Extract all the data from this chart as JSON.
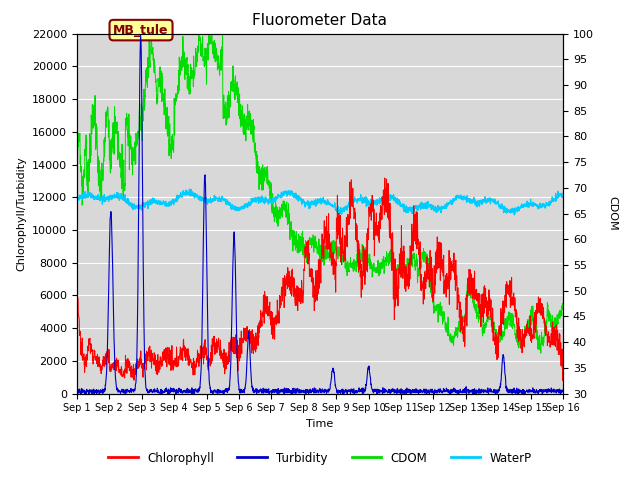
{
  "title": "Fluorometer Data",
  "xlabel": "Time",
  "ylabel_left": "Chlorophyll/Turbidity",
  "ylabel_right": "CDOM",
  "annotation_text": "MB_tule",
  "ylim_left": [
    0,
    22000
  ],
  "ylim_right": [
    30,
    100
  ],
  "yticks_left": [
    0,
    2000,
    4000,
    6000,
    8000,
    10000,
    12000,
    14000,
    16000,
    18000,
    20000,
    22000
  ],
  "yticks_right": [
    30,
    35,
    40,
    45,
    50,
    55,
    60,
    65,
    70,
    75,
    80,
    85,
    90,
    95,
    100
  ],
  "xtick_labels": [
    "Sep 1",
    "Sep 2",
    "Sep 3",
    "Sep 4",
    "Sep 5",
    "Sep 6",
    "Sep 7",
    "Sep 8",
    "Sep 9",
    "Sep 10",
    "Sep 11",
    "Sep 12",
    "Sep 13",
    "Sep 14",
    "Sep 15",
    "Sep 16"
  ],
  "colors": {
    "chlorophyll": "#ff0000",
    "turbidity": "#0000cc",
    "cdom": "#00dd00",
    "waterp": "#00ccff",
    "plot_bg": "#d8d8d8",
    "fig_bg": "#ffffff",
    "grid": "#ffffff",
    "annotation_bg": "#ffff99",
    "annotation_border": "#880000",
    "annotation_text": "#880000"
  },
  "legend_entries": [
    "Chlorophyll",
    "Turbidity",
    "CDOM",
    "WaterP"
  ]
}
